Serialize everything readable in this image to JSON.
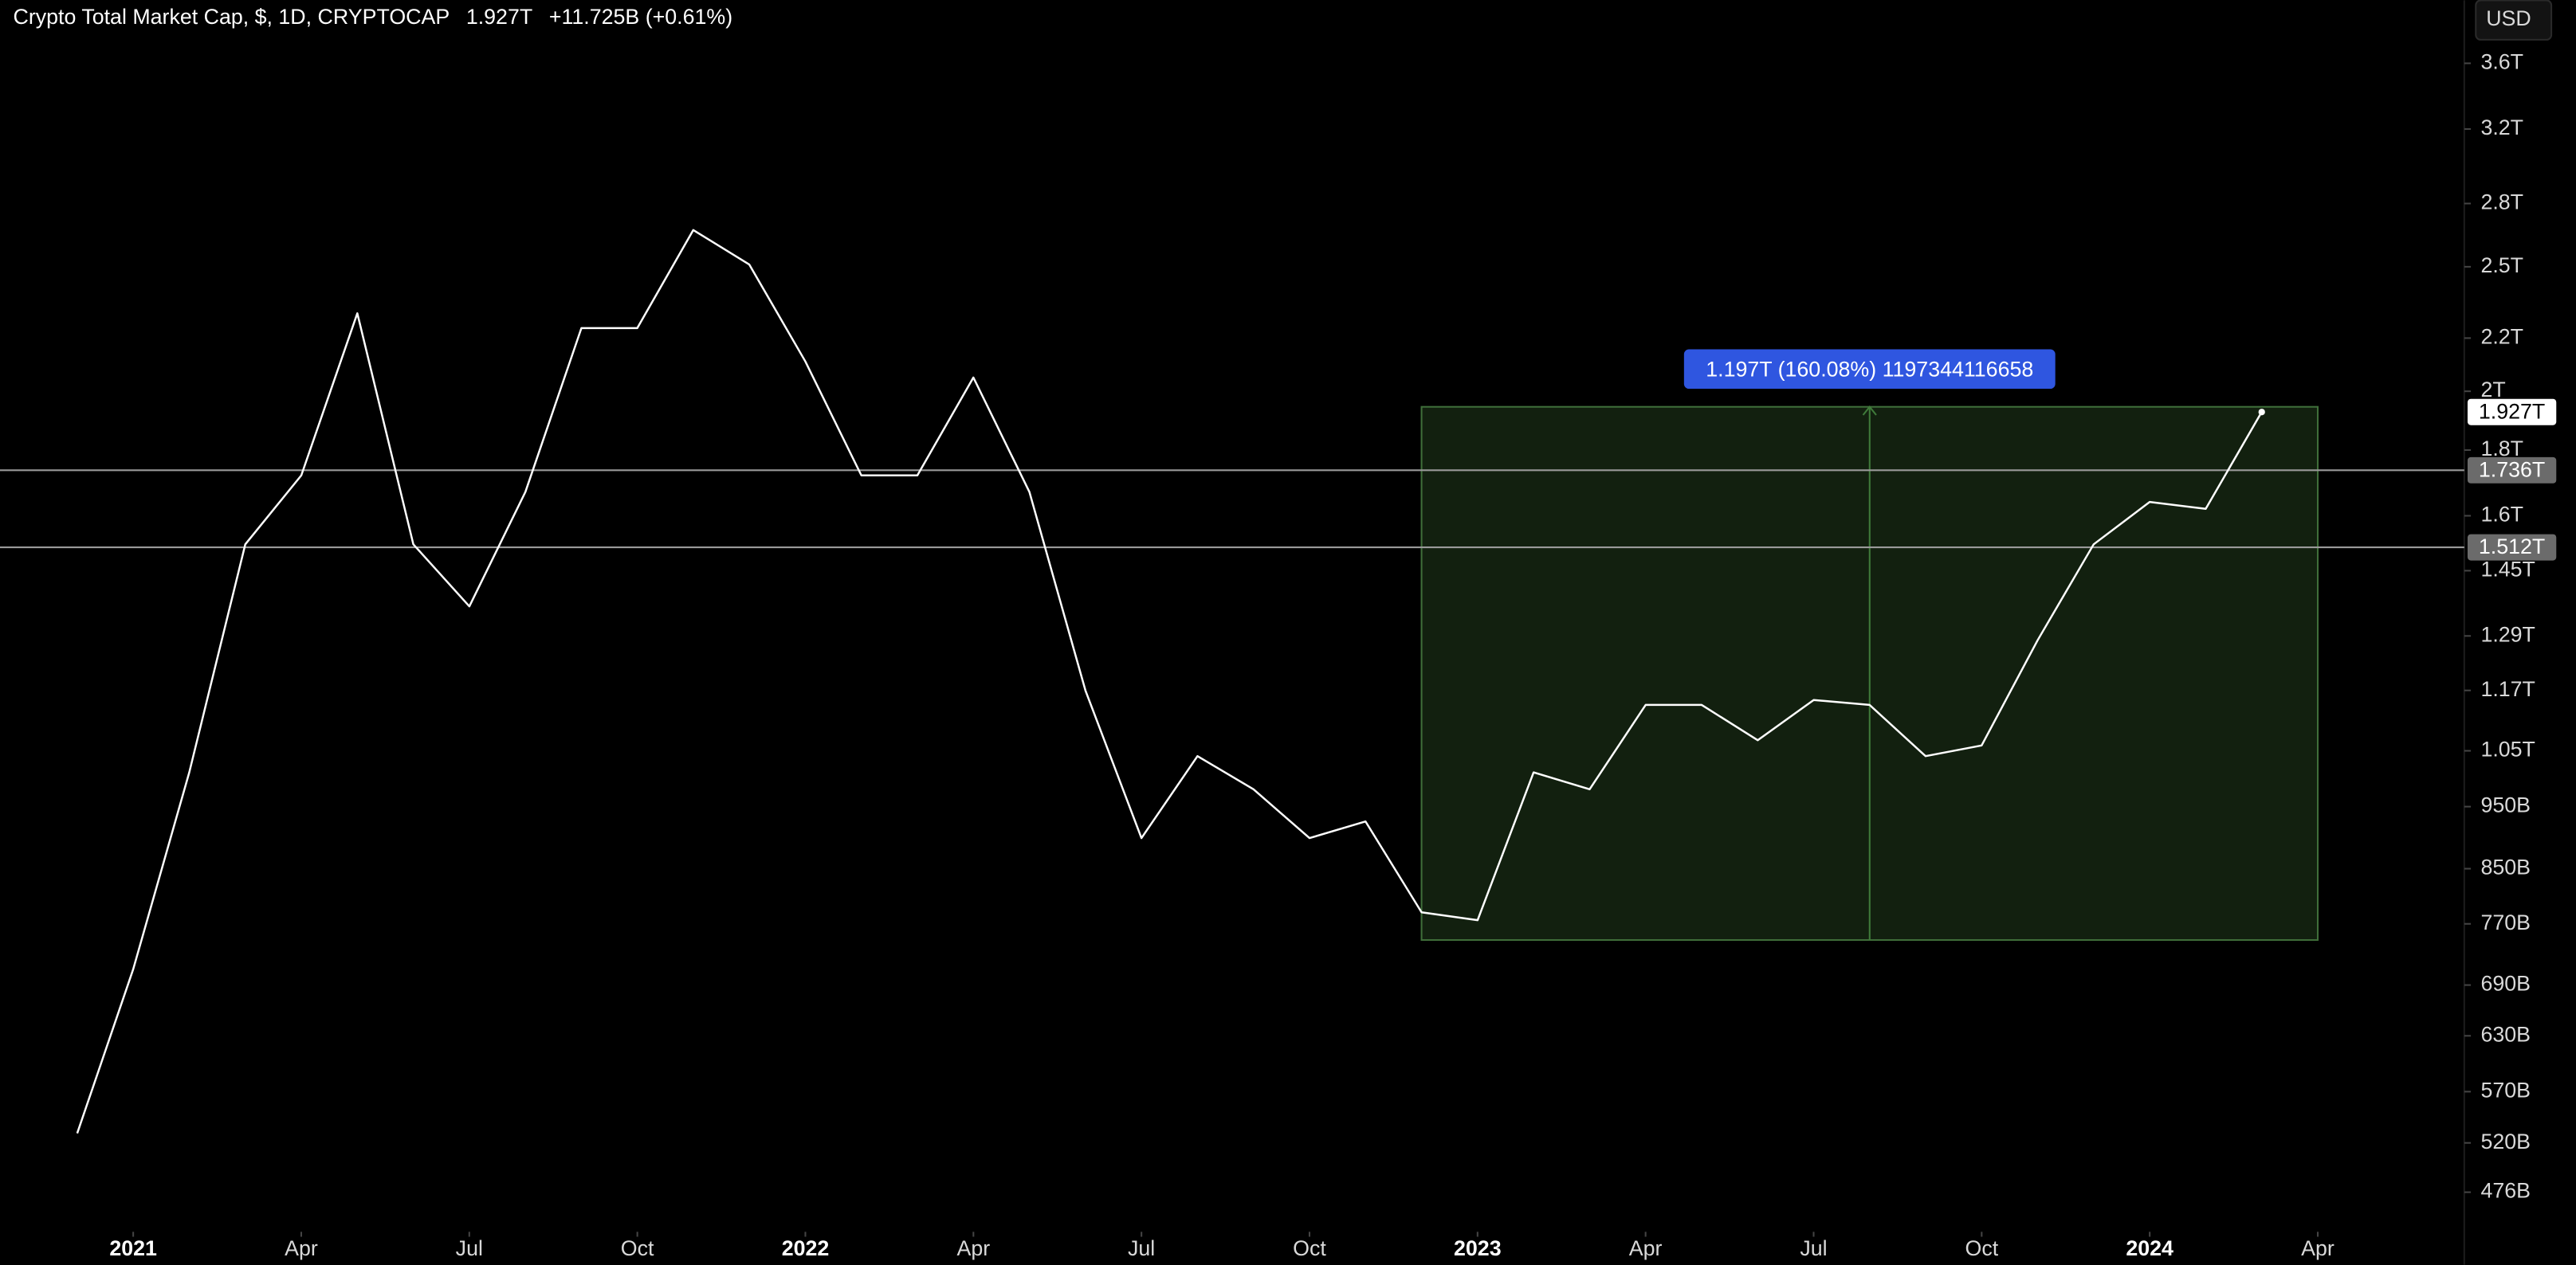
{
  "chart_data": {
    "type": "line",
    "title": "Crypto Total Market Cap, $, 1D, CRYPTOCAP",
    "last_label": "1.927T",
    "change_label": "+11.725B (+0.61%)",
    "currency": "USD",
    "color": "#ffffff",
    "log_scale": true,
    "x": [
      "2020-12",
      "2021-01",
      "2021-02",
      "2021-03",
      "2021-04",
      "2021-05",
      "2021-06",
      "2021-07",
      "2021-08",
      "2021-09",
      "2021-10",
      "2021-11",
      "2021-12",
      "2022-01",
      "2022-02",
      "2022-03",
      "2022-04",
      "2022-05",
      "2022-06",
      "2022-07",
      "2022-08",
      "2022-09",
      "2022-10",
      "2022-11",
      "2022-12",
      "2023-01",
      "2023-02",
      "2023-03",
      "2023-04",
      "2023-05",
      "2023-06",
      "2023-07",
      "2023-08",
      "2023-09",
      "2023-10",
      "2023-11",
      "2023-12",
      "2024-01",
      "2024-02",
      "2024-03"
    ],
    "values": [
      529000000000,
      710000000000,
      1010000000000,
      1520000000000,
      1720000000000,
      2300000000000,
      1520000000000,
      1360000000000,
      1670000000000,
      2240000000000,
      2240000000000,
      2670000000000,
      2510000000000,
      2110000000000,
      1720000000000,
      1720000000000,
      2050000000000,
      1670000000000,
      1170000000000,
      898000000000,
      1040000000000,
      980000000000,
      898000000000,
      925000000000,
      786000000000,
      775000000000,
      1010000000000,
      980000000000,
      1140000000000,
      1140000000000,
      1070000000000,
      1150000000000,
      1140000000000,
      1040000000000,
      1060000000000,
      1280000000000,
      1520000000000,
      1640000000000,
      1620000000000,
      1927000000000
    ],
    "xlim": [
      "2020-10",
      "2024-06"
    ],
    "xticks": [
      {
        "value": "2021-01",
        "label": "2021"
      },
      {
        "value": "2021-04",
        "label": "Apr"
      },
      {
        "value": "2021-07",
        "label": "Jul"
      },
      {
        "value": "2021-10",
        "label": "Oct"
      },
      {
        "value": "2022-01",
        "label": "2022"
      },
      {
        "value": "2022-04",
        "label": "Apr"
      },
      {
        "value": "2022-07",
        "label": "Jul"
      },
      {
        "value": "2022-10",
        "label": "Oct"
      },
      {
        "value": "2023-01",
        "label": "2023"
      },
      {
        "value": "2023-04",
        "label": "Apr"
      },
      {
        "value": "2023-07",
        "label": "Jul"
      },
      {
        "value": "2023-10",
        "label": "Oct"
      },
      {
        "value": "2024-01",
        "label": "2024"
      },
      {
        "value": "2024-04",
        "label": "Apr"
      }
    ],
    "ylim": [
      446000000000,
      4030000000000
    ],
    "yticks": [
      {
        "value": 3600000000000,
        "label": "3.6T"
      },
      {
        "value": 3200000000000,
        "label": "3.2T"
      },
      {
        "value": 2800000000000,
        "label": "2.8T"
      },
      {
        "value": 2500000000000,
        "label": "2.5T"
      },
      {
        "value": 2200000000000,
        "label": "2.2T"
      },
      {
        "value": 2000000000000,
        "label": "2T"
      },
      {
        "value": 1800000000000,
        "label": "1.8T"
      },
      {
        "value": 1600000000000,
        "label": "1.6T"
      },
      {
        "value": 1450000000000,
        "label": "1.45T"
      },
      {
        "value": 1290000000000,
        "label": "1.29T"
      },
      {
        "value": 1170000000000,
        "label": "1.17T"
      },
      {
        "value": 1050000000000,
        "label": "1.05T"
      },
      {
        "value": 950000000000,
        "label": "950B"
      },
      {
        "value": 850000000000,
        "label": "850B"
      },
      {
        "value": 770000000000,
        "label": "770B"
      },
      {
        "value": 690000000000,
        "label": "690B"
      },
      {
        "value": 630000000000,
        "label": "630B"
      },
      {
        "value": 570000000000,
        "label": "570B"
      },
      {
        "value": 520000000000,
        "label": "520B"
      },
      {
        "value": 476000000000,
        "label": "476B"
      }
    ],
    "hlines": [
      {
        "value": 1736000000000,
        "label": "1.736T"
      },
      {
        "value": 1512000000000,
        "label": "1.512T"
      }
    ],
    "last": {
      "value": 1927000000000,
      "label": "1.927T"
    },
    "measure": {
      "label": "1.197T (160.08%) 1197344116658",
      "x": [
        "2022-12",
        "2024-04"
      ],
      "range": [
        748000000000,
        1945000000000
      ]
    }
  }
}
